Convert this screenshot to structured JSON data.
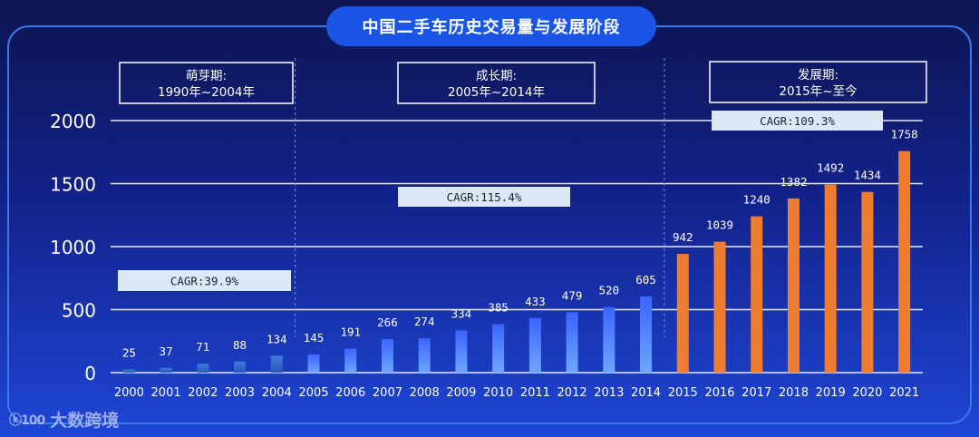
{
  "title": "中国二手车历史交易量与发展阶段",
  "watermark": {
    "text": "大数跨境",
    "mark": "ⓚ100"
  },
  "phases": [
    {
      "name": "萌芽期:",
      "range": "1990年~2004年",
      "cagr": "CAGR:39.9%"
    },
    {
      "name": "成长期:",
      "range": "2005年~2014年",
      "cagr": "CAGR:115.4%"
    },
    {
      "name": "发展期:",
      "range": "2015年~至今",
      "cagr": "CAGR:109.3%"
    }
  ],
  "colors": {
    "early_bar_top": "#3f7bd6",
    "growth_bar_top": "#6ea7ff",
    "growth_bar_bottom": "#3b64ff",
    "development_bar": "#ef7d2f",
    "gridline": "#ffffff",
    "cagr_box": "#dce8f6",
    "title_pill": "#1b55e6"
  },
  "chart_data": {
    "type": "bar",
    "title": "中国二手车历史交易量与发展阶段",
    "xlabel": "",
    "ylabel": "",
    "ylim": [
      0,
      2000
    ],
    "yticks": [
      0,
      500,
      1000,
      1500,
      2000
    ],
    "grid": true,
    "categories": [
      "2000",
      "2001",
      "2002",
      "2003",
      "2004",
      "2005",
      "2006",
      "2007",
      "2008",
      "2009",
      "2010",
      "2011",
      "2012",
      "2013",
      "2014",
      "2015",
      "2016",
      "2017",
      "2018",
      "2019",
      "2020",
      "2021"
    ],
    "values": [
      25,
      37,
      71,
      88,
      134,
      145,
      191,
      266,
      274,
      334,
      385,
      433,
      479,
      520,
      605,
      942,
      1039,
      1240,
      1382,
      1492,
      1434,
      1758
    ],
    "data_labels": [
      "25",
      "37",
      "71",
      "88",
      "134",
      "145",
      "191",
      "266",
      "274",
      "334",
      "385",
      "433",
      "479",
      "520",
      "605",
      "942",
      "1039",
      "1240",
      "1382",
      "1492",
      "1434",
      "1758"
    ]
  }
}
